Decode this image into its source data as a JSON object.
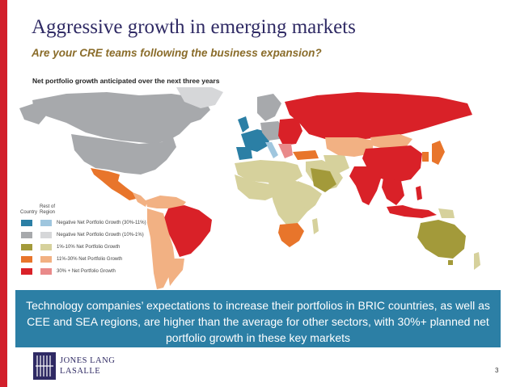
{
  "header": {
    "title": "Aggressive growth in emerging markets",
    "subtitle": "Are your CRE teams following the business  expansion?"
  },
  "map": {
    "label": "Net portfolio growth anticipated over the next three years"
  },
  "legend": {
    "col_country": "Country",
    "col_rest_line1": "Rest of",
    "col_rest_line2": "Region",
    "items": [
      {
        "label": "Negative Net Portfolio Growth (30%-11%)",
        "country_color": "#2b7fa5",
        "rest_color": "#9fc6de"
      },
      {
        "label": "Negative  Net  Portfolio Growth (10%-1%)",
        "country_color": "#a7a9ac",
        "rest_color": "#d6d7d9"
      },
      {
        "label": "1%-10% Net Portfolio Growth",
        "country_color": "#a39a3a",
        "rest_color": "#d6d19c"
      },
      {
        "label": "11%-30% Net Portfolio Growth",
        "country_color": "#e8752b",
        "rest_color": "#f2b183"
      },
      {
        "label": "30% +  Net Portfolio Growth",
        "country_color": "#d92128",
        "rest_color": "#e98a8a"
      }
    ]
  },
  "banner": {
    "text": "Technology companies’ expectations to increase their portfolios in BRIC countries, as well as CEE and SEA regions, are higher than the average for other sectors, with 30%+ planned net portfolio growth in these key markets"
  },
  "logo": {
    "line1": "JONES LANG",
    "line2": "LASALLE"
  },
  "page_number": "3",
  "colors": {
    "accent_red": "#d21f2b",
    "banner_blue": "#2c7fa5",
    "title_navy": "#2f2a64"
  }
}
